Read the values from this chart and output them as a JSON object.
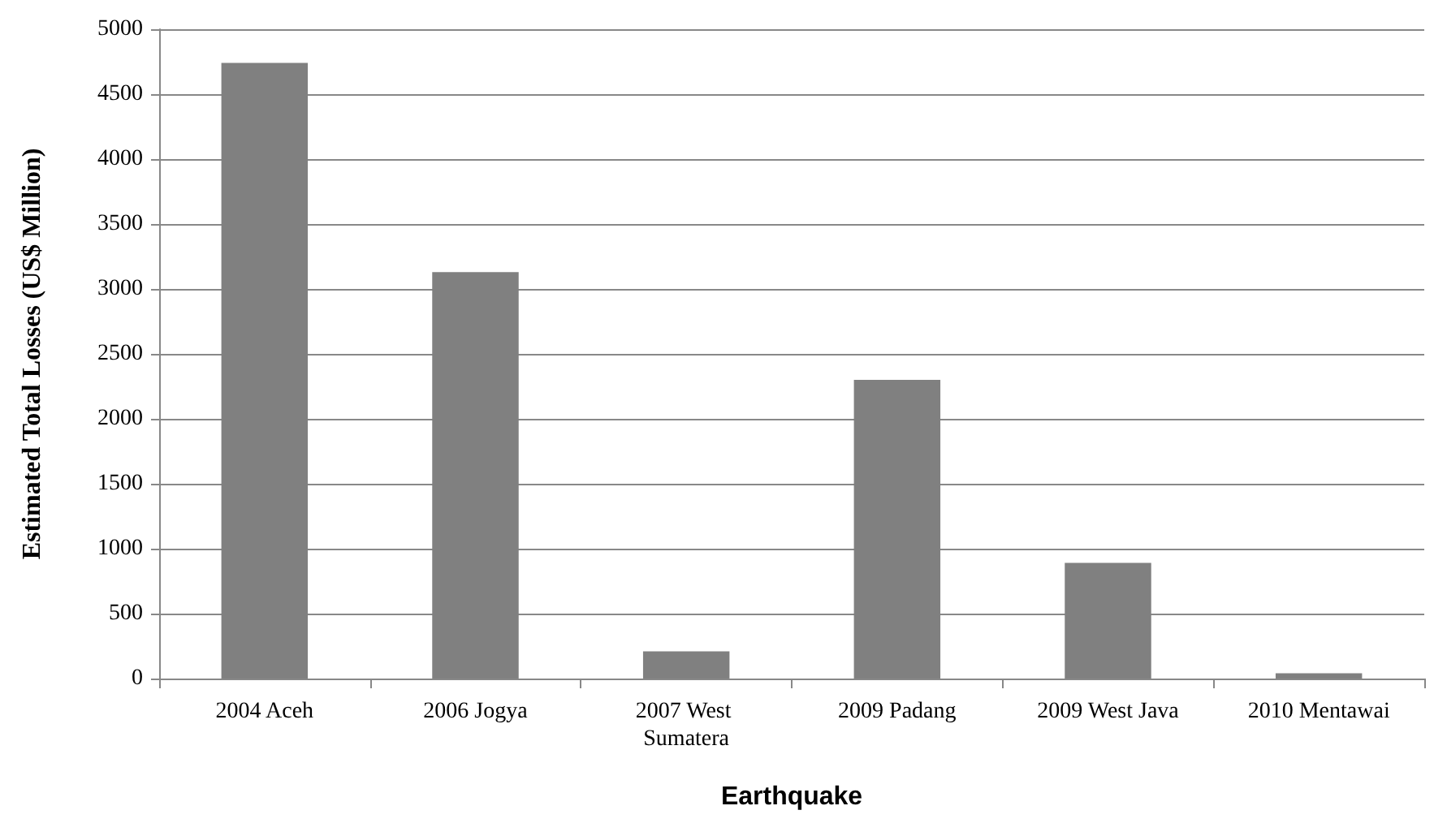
{
  "chart_data": {
    "type": "bar",
    "xlabel": "Earthquake",
    "ylabel": "Estimated Total Losses (US$ Million)",
    "categories": [
      "2004 Aceh",
      "2006 Jogya",
      "2007 West Sumatera",
      "2009 Padang",
      "2009 West Java",
      "2010 Mentawai"
    ],
    "values": [
      4740,
      3130,
      210,
      2300,
      890,
      40
    ],
    "color": "#808080",
    "ylim": [
      0,
      5000
    ],
    "yticks": [
      0,
      500,
      1000,
      1500,
      2000,
      2500,
      3000,
      3500,
      4000,
      4500,
      5000
    ],
    "grid": "y"
  }
}
